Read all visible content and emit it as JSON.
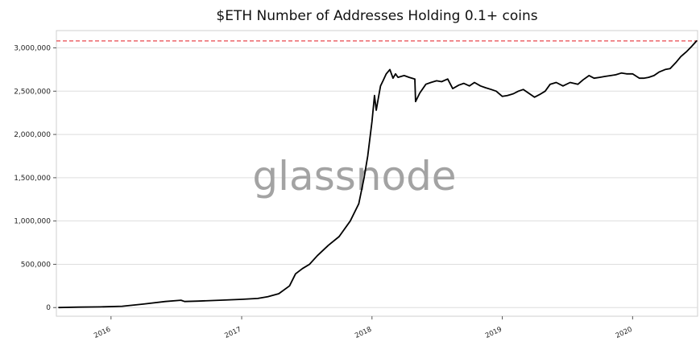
{
  "chart_data": {
    "type": "line",
    "title": "$ETH Number of Addresses Holding 0.1+ coins",
    "xlabel": "",
    "ylabel": "",
    "watermark": "glassnode",
    "xlim": [
      "2015-08-01",
      "2020-07-01"
    ],
    "ylim": [
      -100000,
      3200000
    ],
    "x_ticks": [
      "2016",
      "2017",
      "2018",
      "2019",
      "2020"
    ],
    "y_ticks": [
      "0",
      "500,000",
      "1,000,000",
      "1,500,000",
      "2,000,000",
      "2,500,000",
      "3,000,000"
    ],
    "y_tick_values": [
      0,
      500000,
      1000000,
      1500000,
      2000000,
      2500000,
      3000000
    ],
    "grid": "horizontal",
    "reference_line": {
      "y": 3080000,
      "style": "dashed",
      "color": "#e8474c"
    },
    "series": [
      {
        "color": "#000000",
        "x": [
          "2015-08-08",
          "2015-10-01",
          "2015-12-01",
          "2016-02-01",
          "2016-04-01",
          "2016-06-01",
          "2016-07-15",
          "2016-07-25",
          "2016-09-01",
          "2016-11-01",
          "2017-01-01",
          "2017-02-15",
          "2017-03-15",
          "2017-04-15",
          "2017-05-15",
          "2017-06-01",
          "2017-06-20",
          "2017-07-10",
          "2017-08-01",
          "2017-09-01",
          "2017-10-01",
          "2017-11-01",
          "2017-11-25",
          "2017-12-10",
          "2017-12-20",
          "2018-01-01",
          "2018-01-08",
          "2018-01-13",
          "2018-01-18",
          "2018-01-25",
          "2018-02-01",
          "2018-02-10",
          "2018-02-20",
          "2018-03-01",
          "2018-03-08",
          "2018-03-15",
          "2018-04-01",
          "2018-04-15",
          "2018-05-01",
          "2018-05-03",
          "2018-05-15",
          "2018-06-01",
          "2018-06-15",
          "2018-07-01",
          "2018-07-15",
          "2018-08-01",
          "2018-08-15",
          "2018-09-01",
          "2018-09-15",
          "2018-10-01",
          "2018-10-15",
          "2018-11-01",
          "2018-11-15",
          "2018-12-01",
          "2018-12-15",
          "2019-01-01",
          "2019-01-15",
          "2019-02-01",
          "2019-02-15",
          "2019-03-01",
          "2019-03-15",
          "2019-04-01",
          "2019-04-15",
          "2019-05-01",
          "2019-05-15",
          "2019-06-01",
          "2019-06-20",
          "2019-07-10",
          "2019-08-01",
          "2019-08-15",
          "2019-09-01",
          "2019-09-15",
          "2019-10-01",
          "2019-10-15",
          "2019-11-01",
          "2019-11-15",
          "2019-12-01",
          "2019-12-15",
          "2020-01-01",
          "2020-01-20",
          "2020-02-01",
          "2020-02-15",
          "2020-03-01",
          "2020-03-15",
          "2020-04-01",
          "2020-04-15",
          "2020-05-01",
          "2020-05-15",
          "2020-06-01",
          "2020-06-15",
          "2020-06-28"
        ],
        "values": [
          0,
          5000,
          8000,
          15000,
          40000,
          70000,
          85000,
          70000,
          75000,
          85000,
          95000,
          105000,
          125000,
          160000,
          250000,
          390000,
          450000,
          500000,
          600000,
          720000,
          820000,
          1000000,
          1200000,
          1500000,
          1750000,
          2150000,
          2450000,
          2280000,
          2400000,
          2560000,
          2620000,
          2700000,
          2750000,
          2650000,
          2700000,
          2660000,
          2680000,
          2660000,
          2640000,
          2380000,
          2480000,
          2580000,
          2600000,
          2620000,
          2610000,
          2640000,
          2530000,
          2570000,
          2590000,
          2560000,
          2600000,
          2560000,
          2540000,
          2520000,
          2500000,
          2440000,
          2450000,
          2470000,
          2500000,
          2520000,
          2480000,
          2430000,
          2460000,
          2500000,
          2580000,
          2600000,
          2560000,
          2600000,
          2580000,
          2630000,
          2680000,
          2650000,
          2660000,
          2670000,
          2680000,
          2690000,
          2710000,
          2700000,
          2700000,
          2650000,
          2650000,
          2660000,
          2680000,
          2720000,
          2750000,
          2760000,
          2830000,
          2900000,
          2960000,
          3020000,
          3080000
        ]
      }
    ]
  }
}
